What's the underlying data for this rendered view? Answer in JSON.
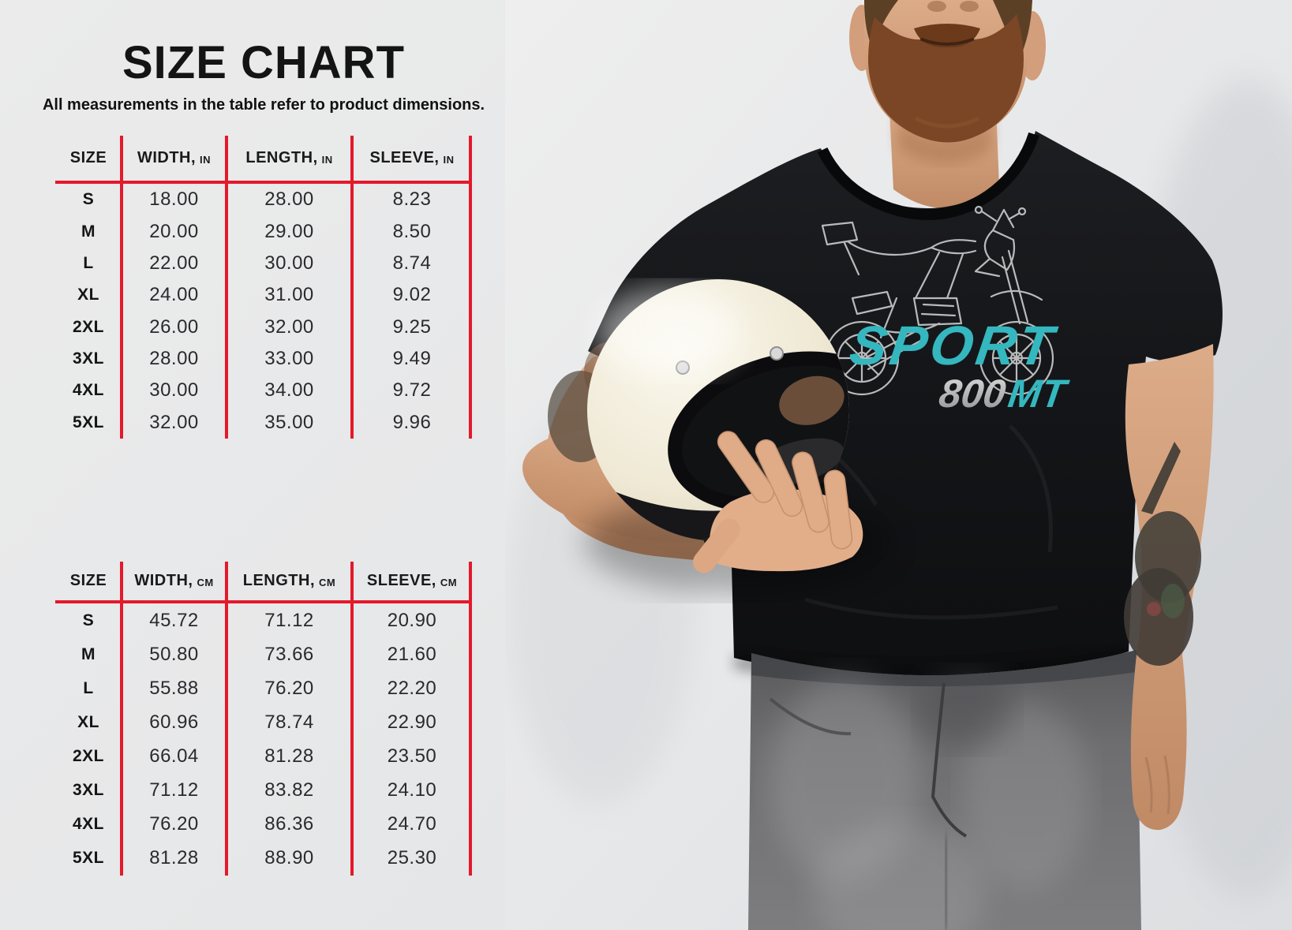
{
  "page": {
    "title": "SIZE CHART",
    "subtitle": "All measurements in the table refer to product dimensions."
  },
  "colors": {
    "accent_red": "#e4192b",
    "shirt_teal": "#34b7bf",
    "shirt_silver": "#c9c9c9",
    "background_gray": "#e7e8e9",
    "tshirt_black": "#17181a"
  },
  "tables": [
    {
      "name": "size-table-inches",
      "headers": [
        {
          "label": "SIZE",
          "unit": ""
        },
        {
          "label": "WIDTH,",
          "unit": "IN"
        },
        {
          "label": "LENGTH,",
          "unit": "IN"
        },
        {
          "label": "SLEEVE,",
          "unit": "IN"
        }
      ],
      "rows": [
        [
          "S",
          "18.00",
          "28.00",
          "8.23"
        ],
        [
          "M",
          "20.00",
          "29.00",
          "8.50"
        ],
        [
          "L",
          "22.00",
          "30.00",
          "8.74"
        ],
        [
          "XL",
          "24.00",
          "31.00",
          "9.02"
        ],
        [
          "2XL",
          "26.00",
          "32.00",
          "9.25"
        ],
        [
          "3XL",
          "28.00",
          "33.00",
          "9.49"
        ],
        [
          "4XL",
          "30.00",
          "34.00",
          "9.72"
        ],
        [
          "5XL",
          "32.00",
          "35.00",
          "9.96"
        ]
      ]
    },
    {
      "name": "size-table-centimeters",
      "headers": [
        {
          "label": "SIZE",
          "unit": ""
        },
        {
          "label": "WIDTH,",
          "unit": "CM"
        },
        {
          "label": "LENGTH,",
          "unit": "CM"
        },
        {
          "label": "SLEEVE,",
          "unit": "CM"
        }
      ],
      "rows": [
        [
          "S",
          "45.72",
          "71.12",
          "20.90"
        ],
        [
          "M",
          "50.80",
          "73.66",
          "21.60"
        ],
        [
          "L",
          "55.88",
          "76.20",
          "22.20"
        ],
        [
          "XL",
          "60.96",
          "78.74",
          "22.90"
        ],
        [
          "2XL",
          "66.04",
          "81.28",
          "23.50"
        ],
        [
          "3XL",
          "71.12",
          "83.82",
          "24.10"
        ],
        [
          "4XL",
          "76.20",
          "86.36",
          "24.70"
        ],
        [
          "5XL",
          "81.28",
          "88.90",
          "25.30"
        ]
      ]
    }
  ],
  "shirt_graphic": {
    "brand": "SPORT",
    "model_number": "800",
    "model_suffix": "MT"
  },
  "chart_data": [
    {
      "type": "table",
      "title": "T-shirt size chart (inches)",
      "columns": [
        "SIZE",
        "WIDTH, IN",
        "LENGTH, IN",
        "SLEEVE, IN"
      ],
      "rows": [
        [
          "S",
          18.0,
          28.0,
          8.23
        ],
        [
          "M",
          20.0,
          29.0,
          8.5
        ],
        [
          "L",
          22.0,
          30.0,
          8.74
        ],
        [
          "XL",
          24.0,
          31.0,
          9.02
        ],
        [
          "2XL",
          26.0,
          32.0,
          9.25
        ],
        [
          "3XL",
          28.0,
          33.0,
          9.49
        ],
        [
          "4XL",
          30.0,
          34.0,
          9.72
        ],
        [
          "5XL",
          32.0,
          35.0,
          9.96
        ]
      ]
    },
    {
      "type": "table",
      "title": "T-shirt size chart (centimeters)",
      "columns": [
        "SIZE",
        "WIDTH, CM",
        "LENGTH, CM",
        "SLEEVE, CM"
      ],
      "rows": [
        [
          "S",
          45.72,
          71.12,
          20.9
        ],
        [
          "M",
          50.8,
          73.66,
          21.6
        ],
        [
          "L",
          55.88,
          76.2,
          22.2
        ],
        [
          "XL",
          60.96,
          78.74,
          22.9
        ],
        [
          "2XL",
          66.04,
          81.28,
          23.5
        ],
        [
          "3XL",
          71.12,
          83.82,
          24.1
        ],
        [
          "4XL",
          76.2,
          86.36,
          24.7
        ],
        [
          "5XL",
          81.28,
          88.9,
          25.3
        ]
      ]
    }
  ]
}
